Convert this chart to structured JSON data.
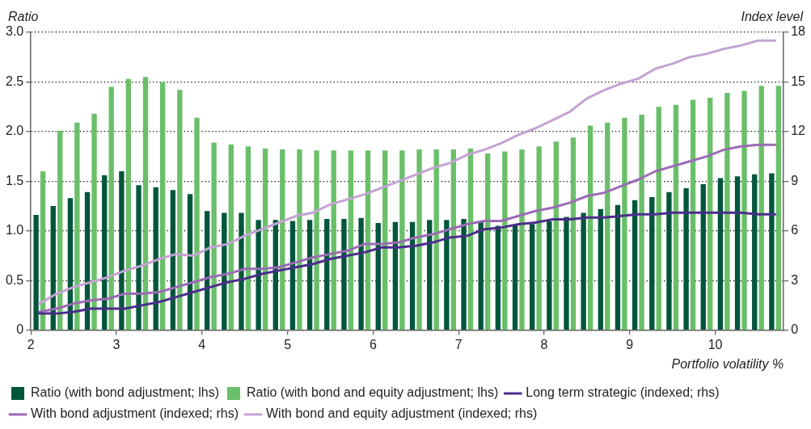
{
  "chart_data": {
    "type": "bar",
    "xlabel": "Portfolio volatility %",
    "ylabel": "Ratio",
    "y2label": "Index level",
    "x": [
      2.1,
      2.3,
      2.5,
      2.7,
      2.9,
      3.1,
      3.3,
      3.5,
      3.7,
      3.9,
      4.1,
      4.3,
      4.5,
      4.7,
      4.9,
      5.1,
      5.3,
      5.5,
      5.7,
      5.9,
      6.1,
      6.3,
      6.5,
      6.7,
      6.9,
      7.1,
      7.3,
      7.5,
      7.7,
      7.9,
      8.1,
      8.3,
      8.5,
      8.7,
      8.9,
      9.1,
      9.3,
      9.5,
      9.7,
      9.9,
      10.1,
      10.3,
      10.5,
      10.7
    ],
    "series": [
      {
        "name": "Ratio (with bond adjustment; lhs)",
        "color": "#00563b",
        "values": [
          1.16,
          1.25,
          1.33,
          1.39,
          1.56,
          1.6,
          1.46,
          1.44,
          1.41,
          1.37,
          1.2,
          1.18,
          1.18,
          1.11,
          1.11,
          1.1,
          1.11,
          1.12,
          1.12,
          1.13,
          1.08,
          1.09,
          1.09,
          1.11,
          1.11,
          1.12,
          1.09,
          1.05,
          1.06,
          1.07,
          1.1,
          1.14,
          1.18,
          1.22,
          1.26,
          1.31,
          1.34,
          1.39,
          1.43,
          1.47,
          1.53,
          1.55,
          1.57,
          1.58
        ]
      },
      {
        "name": "Ratio (with bond and equity adjustment; lhs)",
        "color": "#6abf69",
        "values": [
          1.6,
          2.01,
          2.09,
          2.18,
          2.45,
          2.53,
          2.55,
          2.5,
          2.42,
          2.14,
          1.89,
          1.87,
          1.85,
          1.83,
          1.82,
          1.82,
          1.81,
          1.81,
          1.81,
          1.81,
          1.81,
          1.81,
          1.82,
          1.82,
          1.82,
          1.83,
          1.78,
          1.8,
          1.82,
          1.85,
          1.9,
          1.94,
          2.06,
          2.09,
          2.14,
          2.17,
          2.25,
          2.27,
          2.32,
          2.34,
          2.39,
          2.41,
          2.46,
          2.46
        ]
      },
      {
        "name": "Long term strategic (indexed; rhs)",
        "type": "line",
        "axis": "y2",
        "color": "#4b2d8c",
        "values": [
          1.0,
          1.0,
          1.1,
          1.3,
          1.3,
          1.3,
          1.5,
          1.7,
          2.0,
          2.3,
          2.6,
          2.9,
          3.1,
          3.4,
          3.6,
          3.8,
          4.0,
          4.3,
          4.5,
          4.7,
          5.0,
          5.0,
          5.1,
          5.3,
          5.6,
          5.7,
          6.1,
          6.2,
          6.4,
          6.5,
          6.7,
          6.7,
          6.8,
          6.8,
          6.9,
          7.0,
          7.0,
          7.1,
          7.1,
          7.1,
          7.1,
          7.1,
          7.0,
          7.0
        ]
      },
      {
        "name": "With bond adjustment (indexed; rhs)",
        "type": "line",
        "axis": "y2",
        "color": "#9c6bb5",
        "values": [
          1.1,
          1.3,
          1.6,
          1.8,
          1.9,
          2.2,
          2.2,
          2.3,
          2.6,
          2.9,
          3.2,
          3.4,
          3.7,
          3.7,
          3.8,
          4.1,
          4.4,
          4.6,
          4.8,
          5.2,
          5.2,
          5.3,
          5.6,
          5.8,
          6.1,
          6.4,
          6.6,
          6.6,
          6.9,
          7.2,
          7.4,
          7.7,
          8.1,
          8.3,
          8.7,
          9.1,
          9.6,
          9.9,
          10.2,
          10.5,
          10.9,
          11.1,
          11.2,
          11.2
        ]
      },
      {
        "name": "With bond and equity adjustment (indexed; rhs)",
        "type": "line",
        "axis": "y2",
        "color": "#c4a3d3",
        "values": [
          1.6,
          2.2,
          2.6,
          2.9,
          3.2,
          3.6,
          3.9,
          4.3,
          4.6,
          4.5,
          5.0,
          5.2,
          5.7,
          6.1,
          6.5,
          6.9,
          7.1,
          7.6,
          7.9,
          8.2,
          8.6,
          9.0,
          9.4,
          9.8,
          10.1,
          10.6,
          10.9,
          11.3,
          11.8,
          12.2,
          12.7,
          13.2,
          14.0,
          14.5,
          14.9,
          15.2,
          15.8,
          16.1,
          16.5,
          16.7,
          17.0,
          17.2,
          17.5,
          17.5
        ]
      }
    ],
    "xlim": [
      2,
      10.8
    ],
    "xticks": [
      2,
      3,
      4,
      5,
      6,
      7,
      8,
      9,
      10
    ],
    "ylim": [
      0,
      3
    ],
    "yticks": [
      0,
      0.5,
      {
        "value": 1,
        "label": "1.0"
      },
      1.5,
      {
        "value": 2,
        "label": "2.0"
      },
      2.5,
      {
        "value": 3,
        "label": "3.0"
      }
    ],
    "y2lim": [
      0,
      18
    ],
    "y2ticks": [
      0,
      3,
      6,
      9,
      12,
      15,
      18
    ],
    "grid": "y",
    "legend": "bottom",
    "marker": "none",
    "line_style": "solid"
  }
}
